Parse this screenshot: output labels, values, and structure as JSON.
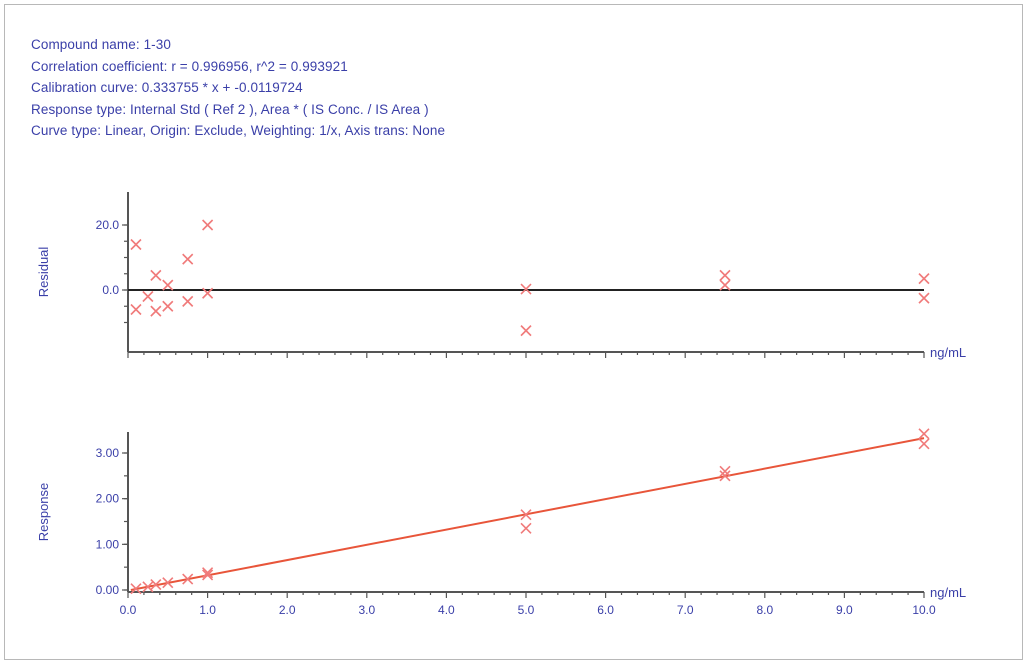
{
  "header": {
    "lines": [
      "Compound name: 1-30",
      "Correlation coefficient: r = 0.996956, r^2 = 0.993921",
      "Calibration curve: 0.333755 * x + -0.0119724",
      "Response type: Internal Std ( Ref 2 ), Area * ( IS Conc. / IS Area )",
      "Curve type: Linear, Origin: Exclude, Weighting: 1/x, Axis trans: None"
    ]
  },
  "chart_data": [
    {
      "type": "scatter",
      "ylabel": "Residual",
      "xlabel": "ng/mL",
      "xlim": [
        0,
        10
      ],
      "ylim": [
        -14,
        20
      ],
      "yticks": [
        {
          "value": 20,
          "label": "20.0"
        },
        {
          "value": 0,
          "label": "0.0"
        }
      ],
      "zero_line": true,
      "marker_color": "#f07a7a",
      "points": [
        {
          "x": 0.1,
          "y": 14
        },
        {
          "x": 0.1,
          "y": -6
        },
        {
          "x": 0.25,
          "y": -2
        },
        {
          "x": 0.35,
          "y": 4.5
        },
        {
          "x": 0.35,
          "y": -6.5
        },
        {
          "x": 0.5,
          "y": 1.5
        },
        {
          "x": 0.5,
          "y": -5
        },
        {
          "x": 0.75,
          "y": 9.5
        },
        {
          "x": 0.75,
          "y": -3.5
        },
        {
          "x": 1.0,
          "y": 20
        },
        {
          "x": 1.0,
          "y": -1
        },
        {
          "x": 5.0,
          "y": 0.3
        },
        {
          "x": 5.0,
          "y": -12.5
        },
        {
          "x": 7.5,
          "y": 4.5
        },
        {
          "x": 7.5,
          "y": 1.5
        },
        {
          "x": 10.0,
          "y": 3.5
        },
        {
          "x": 10.0,
          "y": -2.5
        }
      ]
    },
    {
      "type": "scatter",
      "ylabel": "Response",
      "xlabel": "ng/mL",
      "xlim": [
        0,
        10
      ],
      "ylim": [
        0,
        3.5
      ],
      "yticks": [
        {
          "value": 0,
          "label": "0.00"
        },
        {
          "value": 1,
          "label": "1.00"
        },
        {
          "value": 2,
          "label": "2.00"
        },
        {
          "value": 3,
          "label": "3.00"
        }
      ],
      "xticks": [
        {
          "value": 0,
          "label": "0.0"
        },
        {
          "value": 1,
          "label": "1.0"
        },
        {
          "value": 2,
          "label": "2.0"
        },
        {
          "value": 3,
          "label": "3.0"
        },
        {
          "value": 4,
          "label": "4.0"
        },
        {
          "value": 5,
          "label": "5.0"
        },
        {
          "value": 6,
          "label": "6.0"
        },
        {
          "value": 7,
          "label": "7.0"
        },
        {
          "value": 8,
          "label": "8.0"
        },
        {
          "value": 9,
          "label": "9.0"
        },
        {
          "value": 10,
          "label": "10.0"
        }
      ],
      "fit": {
        "slope": 0.333755,
        "intercept": -0.0119724,
        "color": "#e8553a"
      },
      "marker_color": "#f07a7a",
      "points": [
        {
          "x": 0.1,
          "y": 0.03
        },
        {
          "x": 0.25,
          "y": 0.07
        },
        {
          "x": 0.35,
          "y": 0.12
        },
        {
          "x": 0.5,
          "y": 0.16
        },
        {
          "x": 0.75,
          "y": 0.24
        },
        {
          "x": 1.0,
          "y": 0.38
        },
        {
          "x": 1.0,
          "y": 0.33
        },
        {
          "x": 5.0,
          "y": 1.65
        },
        {
          "x": 5.0,
          "y": 1.35
        },
        {
          "x": 7.5,
          "y": 2.6
        },
        {
          "x": 7.5,
          "y": 2.5
        },
        {
          "x": 10.0,
          "y": 3.42
        },
        {
          "x": 10.0,
          "y": 3.2
        }
      ]
    }
  ]
}
